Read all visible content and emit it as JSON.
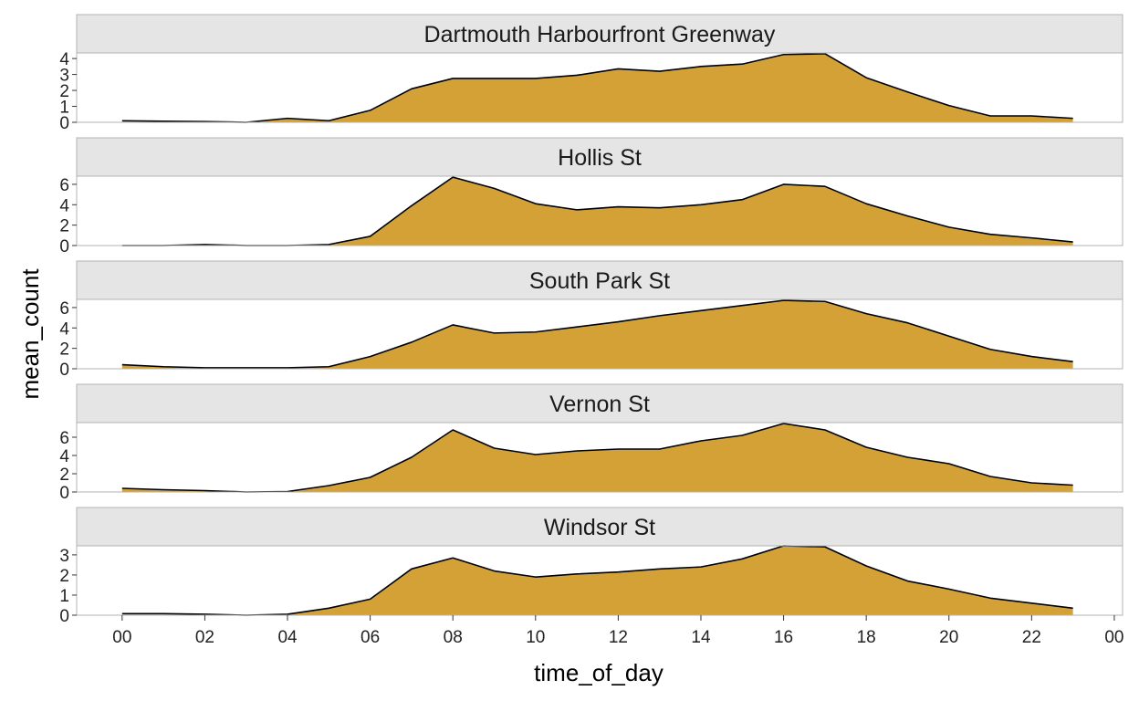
{
  "chart_data": {
    "type": "area",
    "facet_layout": "vertical",
    "xlabel": "time_of_day",
    "ylabel": "mean_count",
    "x_tick_labels": [
      "00",
      "02",
      "04",
      "06",
      "08",
      "10",
      "12",
      "14",
      "16",
      "18",
      "20",
      "22",
      "00"
    ],
    "x_tick_hours": [
      0,
      2,
      4,
      6,
      8,
      10,
      12,
      14,
      16,
      18,
      20,
      22,
      24
    ],
    "xlim_hours": [
      -1.1,
      24.2
    ],
    "fill_color": "#d4a137",
    "line_color": "#000000",
    "strip_color": "#e5e5e5",
    "panels": [
      {
        "name": "Dartmouth Harbourfront Greenway",
        "y_ticks": [
          0,
          1,
          2,
          3,
          4
        ],
        "ylim": [
          0,
          4.35
        ],
        "x": [
          0,
          1,
          2,
          3,
          4,
          5,
          6,
          7,
          8,
          9,
          10,
          11,
          12,
          13,
          14,
          15,
          16,
          17,
          18,
          19,
          20,
          21,
          22,
          23
        ],
        "y": [
          0.1,
          0.07,
          0.05,
          0,
          0.25,
          0.1,
          0.75,
          2.1,
          2.75,
          2.75,
          2.75,
          2.95,
          3.35,
          3.2,
          3.5,
          3.65,
          4.25,
          4.3,
          2.8,
          1.9,
          1.05,
          0.4,
          0.4,
          0.25
        ]
      },
      {
        "name": "Hollis St",
        "y_ticks": [
          0,
          2,
          4,
          6
        ],
        "ylim": [
          0,
          6.8
        ],
        "x": [
          0,
          1,
          2,
          3,
          4,
          5,
          6,
          7,
          8,
          9,
          10,
          11,
          12,
          13,
          14,
          15,
          16,
          17,
          18,
          19,
          20,
          21,
          22,
          23
        ],
        "y": [
          0,
          0,
          0.1,
          0,
          0,
          0.1,
          0.9,
          3.9,
          6.7,
          5.6,
          4.1,
          3.5,
          3.8,
          3.7,
          4.0,
          4.5,
          6.0,
          5.8,
          4.1,
          2.9,
          1.8,
          1.1,
          0.75,
          0.35
        ]
      },
      {
        "name": "South Park St",
        "y_ticks": [
          0,
          2,
          4,
          6
        ],
        "ylim": [
          0,
          6.8
        ],
        "x": [
          0,
          1,
          2,
          3,
          4,
          5,
          6,
          7,
          8,
          9,
          10,
          11,
          12,
          13,
          14,
          15,
          16,
          17,
          18,
          19,
          20,
          21,
          22,
          23
        ],
        "y": [
          0.4,
          0.2,
          0.1,
          0.1,
          0.1,
          0.2,
          1.2,
          2.6,
          4.3,
          3.5,
          3.6,
          4.1,
          4.6,
          5.2,
          5.7,
          6.2,
          6.7,
          6.6,
          5.4,
          4.5,
          3.2,
          1.9,
          1.2,
          0.7
        ]
      },
      {
        "name": "Vernon St",
        "y_ticks": [
          0,
          2,
          4,
          6
        ],
        "ylim": [
          0,
          7.6
        ],
        "x": [
          0,
          1,
          2,
          3,
          4,
          5,
          6,
          7,
          8,
          9,
          10,
          11,
          12,
          13,
          14,
          15,
          16,
          17,
          18,
          19,
          20,
          21,
          22,
          23
        ],
        "y": [
          0.4,
          0.25,
          0.15,
          0,
          0.05,
          0.7,
          1.6,
          3.8,
          6.8,
          4.8,
          4.1,
          4.5,
          4.7,
          4.7,
          5.6,
          6.2,
          7.5,
          6.8,
          4.9,
          3.8,
          3.1,
          1.7,
          1.0,
          0.75
        ]
      },
      {
        "name": "Windsor St",
        "y_ticks": [
          0,
          1,
          2,
          3
        ],
        "ylim": [
          0,
          3.45
        ],
        "x": [
          0,
          1,
          2,
          3,
          4,
          5,
          6,
          7,
          8,
          9,
          10,
          11,
          12,
          13,
          14,
          15,
          16,
          17,
          18,
          19,
          20,
          21,
          22,
          23
        ],
        "y": [
          0.08,
          0.08,
          0.05,
          0,
          0.05,
          0.35,
          0.8,
          2.3,
          2.85,
          2.2,
          1.9,
          2.05,
          2.15,
          2.3,
          2.4,
          2.8,
          3.45,
          3.4,
          2.45,
          1.7,
          1.3,
          0.85,
          0.6,
          0.35
        ]
      }
    ]
  }
}
